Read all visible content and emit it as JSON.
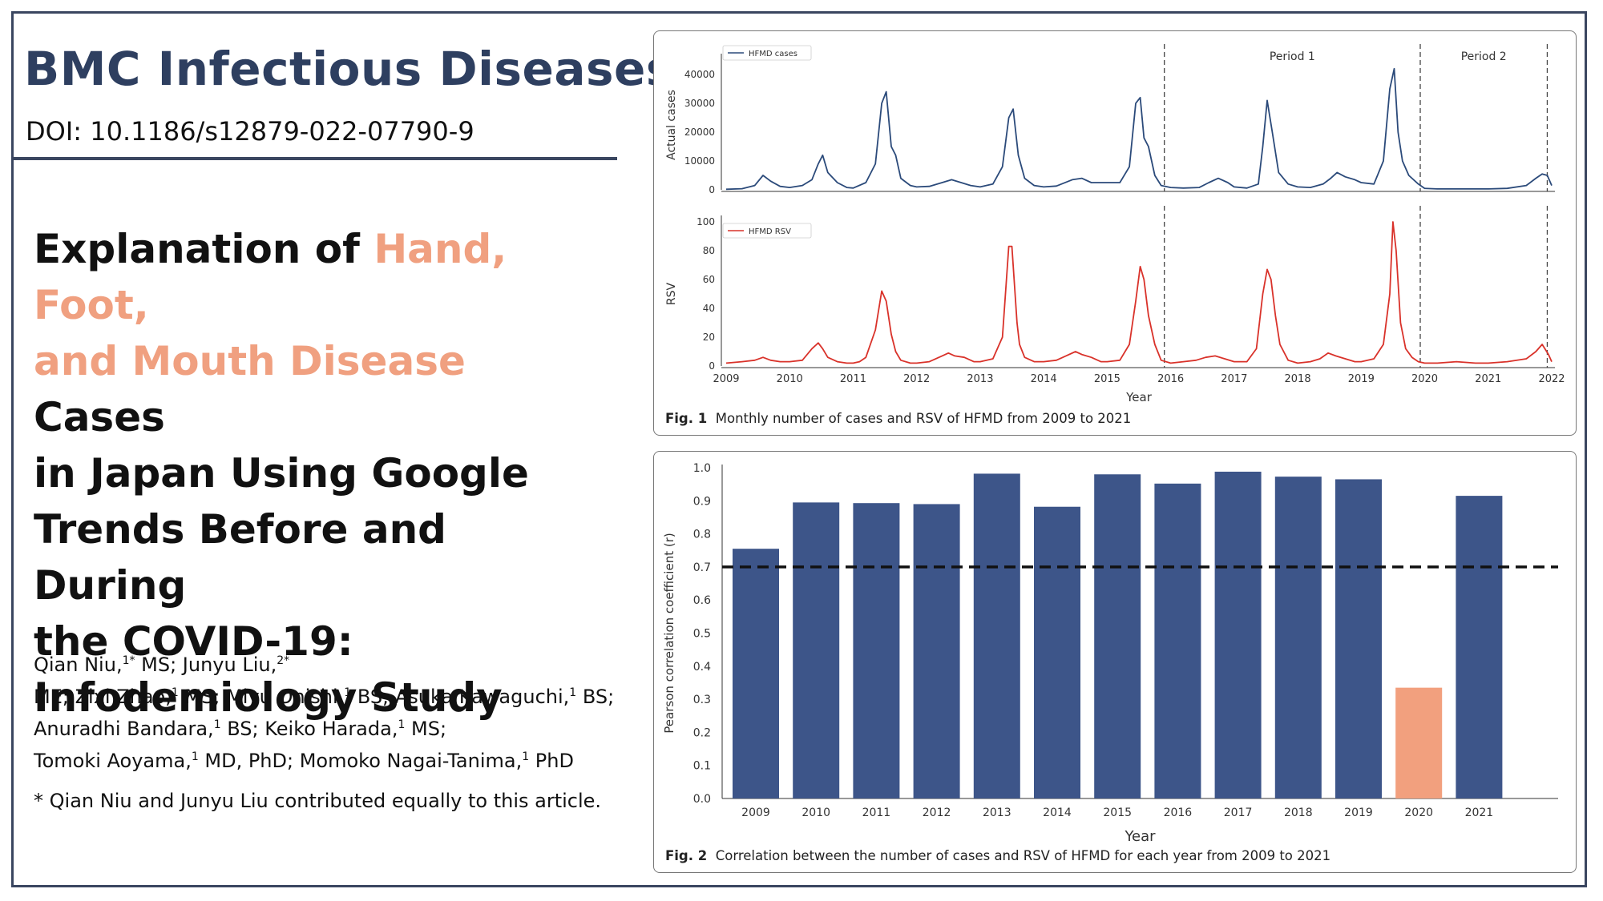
{
  "header": {
    "journal": "BMC Infectious Diseases",
    "doi": "DOI: 10.1186/s12879-022-07790-9"
  },
  "title": {
    "part1": "Explanation of ",
    "highlight1": "Hand, Foot,",
    "highlight2": "and Mouth Disease",
    "part2": " Cases",
    "line3": "in Japan Using Google",
    "line4": "Trends Before and During",
    "line5": "the COVID-19:",
    "line6": "Infodemiology Study"
  },
  "authors": {
    "a1": "Qian Niu,",
    "a1_sup": "1*",
    "a1_deg": " MS; Junyu Liu,",
    "a2_sup": "2*",
    "l2a": "ME; Zixi Zhao,",
    "s3": "1",
    "l2b": " MS; Miyu Onishi,",
    "s4": "1",
    "l2c": " BS; Asuka Kawaguchi,",
    "s5": "1",
    "l2d": " BS;",
    "l3a": "Anuradhi Bandara,",
    "s6": "1",
    "l3b": " BS; Keiko Harada,",
    "s7": "1",
    "l3c": " MS;",
    "l4a": "Tomoki Aoyama,",
    "s8": "1",
    "l4b": " MD, PhD; Momoko Nagai-Tanima,",
    "s9": "1",
    "l4c": " PhD",
    "note": "* Qian Niu and Junyu Liu contributed equally to this article."
  },
  "figure1": {
    "caption_label": "Fig. 1",
    "caption_text": "Monthly number of cases and RSV of HFMD from 2009 to 2021"
  },
  "figure2": {
    "caption_label": "Fig. 2",
    "caption_text": "Correlation between the number of cases and RSV of HFMD for each year from 2009 to 2021"
  },
  "chart_data": [
    {
      "type": "line",
      "ylabel": "Actual cases",
      "xlabel": "",
      "series": [
        {
          "name": "HFMD cases",
          "color": "#2b4a7a",
          "x": [
            2009.0,
            2009.25,
            2009.45,
            2009.58,
            2009.7,
            2009.85,
            2010.0,
            2010.2,
            2010.35,
            2010.45,
            2010.52,
            2010.6,
            2010.75,
            2010.9,
            2011.0,
            2011.2,
            2011.35,
            2011.45,
            2011.52,
            2011.6,
            2011.67,
            2011.75,
            2011.9,
            2012.0,
            2012.2,
            2012.4,
            2012.55,
            2012.7,
            2012.85,
            2013.0,
            2013.2,
            2013.35,
            2013.45,
            2013.52,
            2013.6,
            2013.7,
            2013.85,
            2014.0,
            2014.2,
            2014.45,
            2014.6,
            2014.75,
            2014.9,
            2015.0,
            2015.2,
            2015.35,
            2015.45,
            2015.52,
            2015.58,
            2015.65,
            2015.75,
            2015.85,
            2016.0,
            2016.2,
            2016.45,
            2016.6,
            2016.75,
            2016.9,
            2017.0,
            2017.2,
            2017.38,
            2017.45,
            2017.52,
            2017.6,
            2017.7,
            2017.85,
            2018.0,
            2018.2,
            2018.4,
            2018.52,
            2018.62,
            2018.75,
            2018.9,
            2019.0,
            2019.2,
            2019.35,
            2019.45,
            2019.52,
            2019.58,
            2019.65,
            2019.75,
            2019.9,
            2020.0,
            2020.2,
            2020.5,
            2020.8,
            2021.0,
            2021.3,
            2021.6,
            2021.75,
            2021.85,
            2021.93,
            2022.0
          ],
          "values": [
            200,
            400,
            1500,
            5000,
            3000,
            1200,
            800,
            1500,
            3500,
            9000,
            12000,
            6000,
            2500,
            800,
            600,
            2500,
            9000,
            30000,
            34000,
            15000,
            12000,
            4000,
            1500,
            1000,
            1200,
            2500,
            3500,
            2500,
            1500,
            1000,
            2000,
            8000,
            25000,
            28000,
            12000,
            4000,
            1500,
            1000,
            1300,
            3500,
            4000,
            2500,
            2500,
            2500,
            2500,
            8000,
            30000,
            32000,
            18000,
            15000,
            5000,
            1500,
            800,
            600,
            800,
            2500,
            4000,
            2500,
            1000,
            600,
            2000,
            15000,
            31000,
            20000,
            6000,
            2000,
            1000,
            800,
            2000,
            4000,
            6000,
            4500,
            3500,
            2500,
            2000,
            10000,
            35000,
            42000,
            20000,
            10000,
            5000,
            2000,
            500,
            300,
            300,
            300,
            300,
            500,
            1500,
            4000,
            5500,
            5000,
            1500
          ]
        }
      ],
      "ylim": [
        0,
        45000
      ],
      "yticks": [
        0,
        10000,
        20000,
        30000,
        40000
      ],
      "annotations": [
        "Period 1",
        "Period 2"
      ],
      "vlines": [
        2015.9,
        2019.93,
        2021.93
      ]
    },
    {
      "type": "line",
      "ylabel": "RSV",
      "xlabel": "Year",
      "series": [
        {
          "name": "HFMD RSV",
          "color": "#d9322a",
          "x": [
            2009.0,
            2009.25,
            2009.45,
            2009.58,
            2009.7,
            2009.85,
            2010.0,
            2010.2,
            2010.35,
            2010.45,
            2010.52,
            2010.6,
            2010.75,
            2010.9,
            2011.0,
            2011.1,
            2011.2,
            2011.35,
            2011.45,
            2011.52,
            2011.6,
            2011.67,
            2011.75,
            2011.9,
            2012.0,
            2012.2,
            2012.4,
            2012.5,
            2012.6,
            2012.75,
            2012.9,
            2013.0,
            2013.2,
            2013.35,
            2013.45,
            2013.5,
            2013.58,
            2013.62,
            2013.7,
            2013.85,
            2014.0,
            2014.2,
            2014.35,
            2014.5,
            2014.6,
            2014.75,
            2014.9,
            2015.0,
            2015.2,
            2015.35,
            2015.45,
            2015.52,
            2015.58,
            2015.65,
            2015.75,
            2015.85,
            2016.0,
            2016.2,
            2016.4,
            2016.55,
            2016.7,
            2016.85,
            2017.0,
            2017.2,
            2017.35,
            2017.45,
            2017.52,
            2017.58,
            2017.65,
            2017.72,
            2017.85,
            2018.0,
            2018.2,
            2018.35,
            2018.48,
            2018.6,
            2018.75,
            2018.9,
            2019.0,
            2019.2,
            2019.35,
            2019.45,
            2019.5,
            2019.55,
            2019.62,
            2019.7,
            2019.8,
            2019.9,
            2020.0,
            2020.2,
            2020.5,
            2020.8,
            2021.0,
            2021.3,
            2021.6,
            2021.75,
            2021.85,
            2021.95,
            2022.0
          ],
          "values": [
            2,
            3,
            4,
            6,
            4,
            3,
            3,
            4,
            12,
            16,
            12,
            6,
            3,
            2,
            2,
            3,
            6,
            25,
            52,
            45,
            22,
            10,
            4,
            2,
            2,
            3,
            7,
            9,
            7,
            6,
            3,
            3,
            5,
            20,
            83,
            83,
            30,
            15,
            6,
            3,
            3,
            4,
            7,
            10,
            8,
            6,
            3,
            3,
            4,
            15,
            45,
            69,
            60,
            35,
            15,
            4,
            2,
            3,
            4,
            6,
            7,
            5,
            3,
            3,
            12,
            50,
            67,
            60,
            35,
            15,
            4,
            2,
            3,
            5,
            9,
            7,
            5,
            3,
            3,
            5,
            15,
            50,
            100,
            80,
            30,
            12,
            6,
            3,
            2,
            2,
            3,
            2,
            2,
            3,
            5,
            10,
            15,
            8,
            3
          ]
        }
      ],
      "ylim": [
        0,
        100
      ],
      "yticks": [
        0,
        20,
        40,
        60,
        80,
        100
      ],
      "xticks": [
        "2009",
        "2010",
        "2011",
        "2012",
        "2013",
        "2014",
        "2015",
        "2016",
        "2017",
        "2018",
        "2019",
        "2020",
        "2021",
        "2022"
      ],
      "vlines": [
        2015.9,
        2019.93,
        2021.93
      ]
    },
    {
      "type": "bar",
      "categories": [
        "2009",
        "2010",
        "2011",
        "2012",
        "2013",
        "2014",
        "2015",
        "2016",
        "2017",
        "2018",
        "2019",
        "2020",
        "2021"
      ],
      "values": [
        0.755,
        0.895,
        0.893,
        0.89,
        0.982,
        0.882,
        0.98,
        0.952,
        0.988,
        0.973,
        0.965,
        0.335,
        0.915
      ],
      "highlight_index": 11,
      "colors": {
        "default": "#3d5589",
        "highlight": "#f2a07e"
      },
      "threshold": 0.7,
      "xlabel": "Year",
      "ylabel": "Pearson correlation coefficient (r)",
      "ylim": [
        0,
        1.0
      ],
      "yticks": [
        "0.0",
        "0.1",
        "0.2",
        "0.3",
        "0.4",
        "0.5",
        "0.6",
        "0.7",
        "0.8",
        "0.9",
        "1.0"
      ]
    }
  ]
}
